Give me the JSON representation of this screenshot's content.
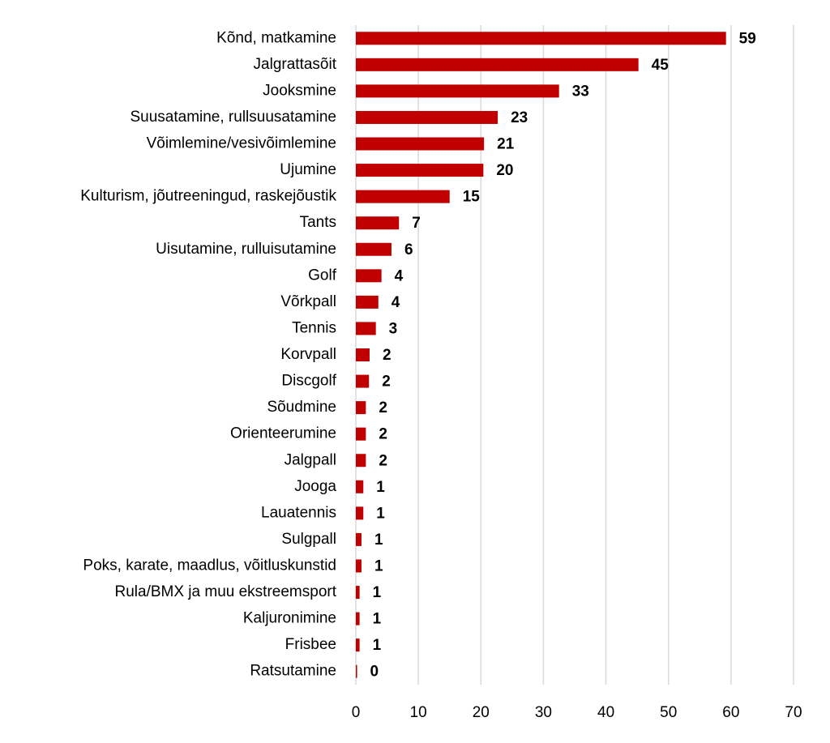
{
  "chart_data": {
    "type": "barh",
    "categories": [
      "Kõnd, matkamine",
      "Jalgrattasõit",
      "Jooksmine",
      "Suusatamine, rullsuusatamine",
      "Võimlemine/vesivõimlemine",
      "Ujumine",
      "Kulturism, jõutreeningud, raskejõustik",
      "Tants",
      "Uisutamine, rulluisutamine",
      "Golf",
      "Võrkpall",
      "Tennis",
      "Korvpall",
      "Discgolf",
      "Sõudmine",
      "Orienteerumine",
      "Jalgpall",
      "Jooga",
      "Lauatennis",
      "Sulgpall",
      "Poks, karate, maadlus, võitluskunstid",
      "Rula/BMX ja muu ekstreemsport",
      "Kaljuronimine",
      "Frisbee",
      "Ratsutamine"
    ],
    "values": [
      59.2,
      45.2,
      32.5,
      22.7,
      20.5,
      20.4,
      15.0,
      6.9,
      5.7,
      4.1,
      3.6,
      3.2,
      2.2,
      2.1,
      1.6,
      1.6,
      1.6,
      1.2,
      1.2,
      0.9,
      0.9,
      0.6,
      0.6,
      0.6,
      0.2
    ],
    "value_labels": [
      "59",
      "45",
      "33",
      "23",
      "21",
      "20",
      "15",
      "7",
      "6",
      "4",
      "4",
      "3",
      "2",
      "2",
      "2",
      "2",
      "2",
      "1",
      "1",
      "1",
      "1",
      "1",
      "1",
      "1",
      "0"
    ],
    "color": "#c00000",
    "xlim": [
      0,
      70
    ],
    "xticks": [
      0,
      10,
      20,
      30,
      40,
      50,
      60,
      70
    ],
    "grid": true
  }
}
